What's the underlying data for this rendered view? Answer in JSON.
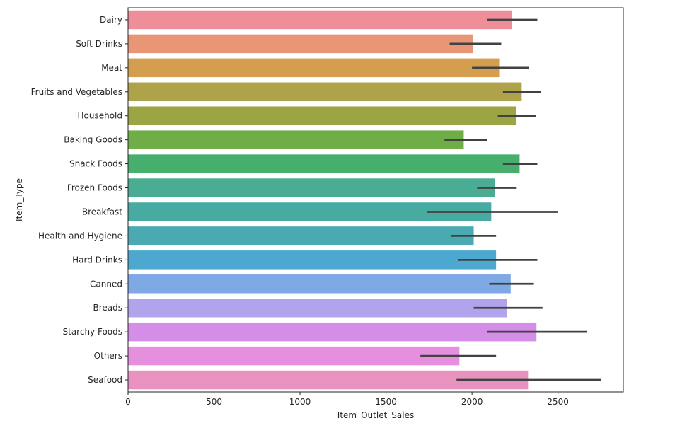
{
  "chart_data": {
    "type": "bar",
    "orientation": "horizontal",
    "xlabel": "Item_Outlet_Sales",
    "ylabel": "Item_Type",
    "xlim": [
      0,
      2880
    ],
    "xticks": [
      0,
      500,
      1000,
      1500,
      2000,
      2500
    ],
    "grid": false,
    "legend": "none",
    "categories": [
      "Dairy",
      "Soft Drinks",
      "Meat",
      "Fruits and Vegetables",
      "Household",
      "Baking Goods",
      "Snack Foods",
      "Frozen Foods",
      "Breakfast",
      "Health and Hygiene",
      "Hard Drinks",
      "Canned",
      "Breads",
      "Starchy Foods",
      "Others",
      "Seafood"
    ],
    "values": [
      2232,
      2006,
      2158,
      2289,
      2259,
      1952,
      2277,
      2133,
      2112,
      2010,
      2140,
      2225,
      2204,
      2375,
      1927,
      2326
    ],
    "error_low": [
      2090,
      1870,
      2000,
      2180,
      2150,
      1840,
      2180,
      2030,
      1740,
      1880,
      1920,
      2100,
      2010,
      2090,
      1700,
      1910
    ],
    "error_high": [
      2380,
      2170,
      2330,
      2400,
      2370,
      2090,
      2380,
      2260,
      2500,
      2140,
      2380,
      2360,
      2410,
      2670,
      2140,
      2750
    ],
    "colors": [
      "#ee8e99",
      "#e99676",
      "#d49e4e",
      "#aea24b",
      "#9ba544",
      "#6fad47",
      "#47af6e",
      "#4aad93",
      "#48aba2",
      "#49aab1",
      "#4ca8cf",
      "#7ea9e5",
      "#b2a3ed",
      "#d48ee8",
      "#e78fdf",
      "#ea92bf"
    ],
    "error_color": "#424242"
  }
}
